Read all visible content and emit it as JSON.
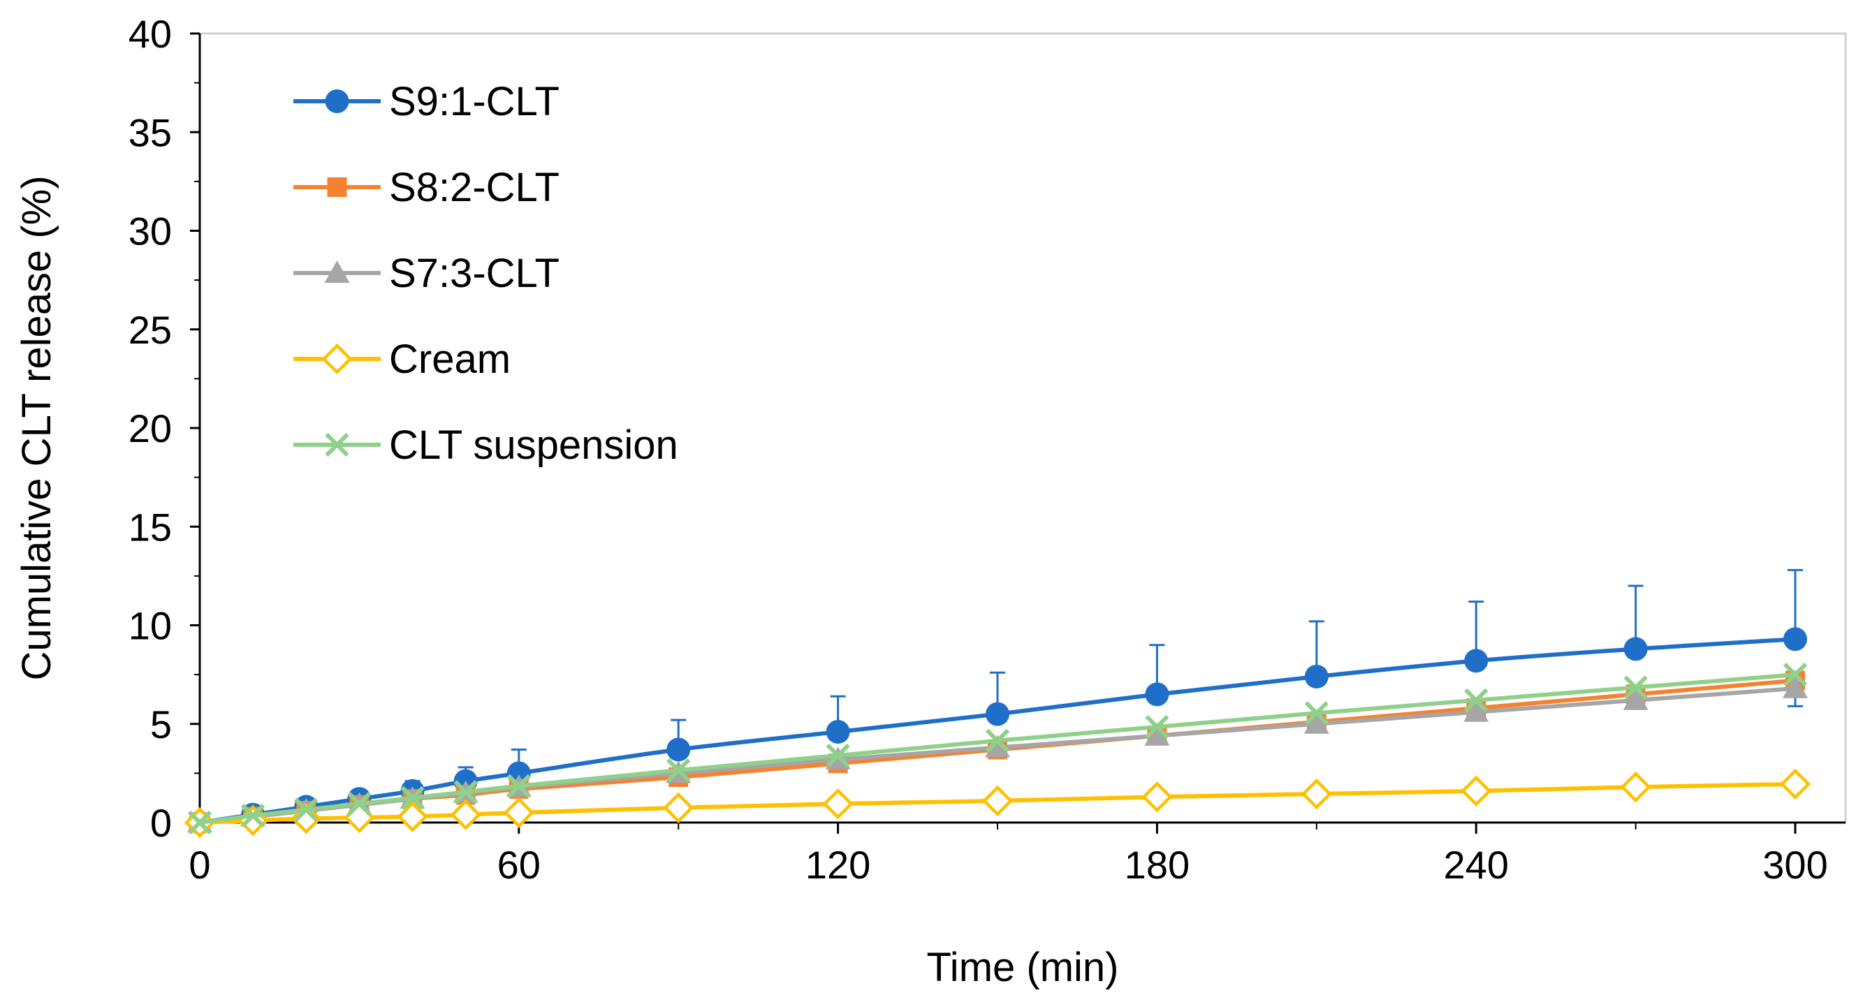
{
  "chart_data": {
    "type": "line",
    "title": "",
    "xlabel": "Time (min)",
    "ylabel": "Cumulative CLT release (%)",
    "xlim": [
      0,
      300
    ],
    "ylim": [
      0,
      40
    ],
    "xticks": [
      "0",
      "60",
      "120",
      "180",
      "240",
      "300"
    ],
    "yticks": [
      "0",
      "5",
      "10",
      "15",
      "20",
      "25",
      "30",
      "35",
      "40"
    ],
    "grid": false,
    "legend_position": "top-left",
    "x": [
      0,
      10,
      20,
      30,
      40,
      50,
      60,
      90,
      120,
      150,
      180,
      210,
      240,
      270,
      300
    ],
    "series": [
      {
        "name": "S9:1-CLT",
        "color": "#1f6fc8",
        "marker": "circle",
        "values": [
          0,
          0.4,
          0.8,
          1.2,
          1.6,
          2.1,
          2.5,
          3.7,
          4.6,
          5.5,
          6.5,
          7.4,
          8.2,
          8.8,
          9.3
        ],
        "error_plus": [
          0,
          0.2,
          0.3,
          0.3,
          0.5,
          0.7,
          1.2,
          1.5,
          1.8,
          2.1,
          2.5,
          2.8,
          3.0,
          3.2,
          3.5
        ]
      },
      {
        "name": "S8:2-CLT",
        "color": "#f58231",
        "marker": "square",
        "values": [
          0,
          0.3,
          0.6,
          0.9,
          1.2,
          1.4,
          1.7,
          2.3,
          3.0,
          3.7,
          4.4,
          5.1,
          5.8,
          6.5,
          7.2
        ],
        "error_plus": []
      },
      {
        "name": "S7:3-CLT",
        "color": "#a6a6a6",
        "marker": "triangle",
        "values": [
          0,
          0.3,
          0.6,
          0.9,
          1.2,
          1.5,
          1.8,
          2.5,
          3.2,
          3.8,
          4.4,
          5.0,
          5.6,
          6.2,
          6.8
        ],
        "error_plus": [],
        "error_minus": [
          0,
          0,
          0,
          0,
          0,
          0,
          0,
          0,
          0,
          0,
          0,
          0,
          0,
          0,
          0.9
        ]
      },
      {
        "name": "Cream",
        "color": "#ffc000",
        "marker": "diamond",
        "values": [
          0,
          0.1,
          0.2,
          0.25,
          0.3,
          0.4,
          0.5,
          0.75,
          0.95,
          1.1,
          1.3,
          1.45,
          1.6,
          1.8,
          1.95
        ],
        "error_plus": []
      },
      {
        "name": "CLT suspension",
        "color": "#8fd08a",
        "marker": "x",
        "values": [
          0,
          0.35,
          0.65,
          0.95,
          1.25,
          1.55,
          1.85,
          2.65,
          3.4,
          4.15,
          4.85,
          5.55,
          6.2,
          6.85,
          7.5
        ],
        "error_plus": []
      }
    ]
  }
}
